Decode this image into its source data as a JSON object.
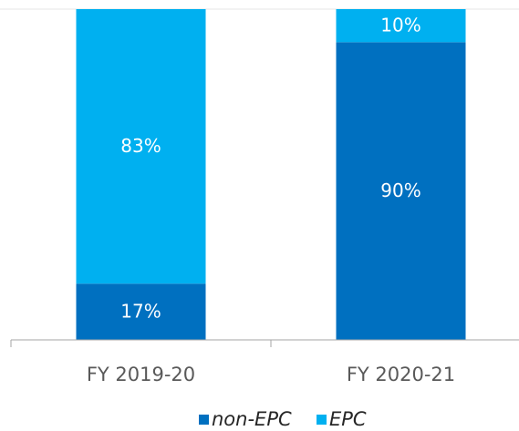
{
  "chart_data": {
    "type": "stacked_bar",
    "categories": [
      "FY 2019-20",
      "FY 2020-21"
    ],
    "series": [
      {
        "name": "non-EPC",
        "color": "#0070c0",
        "values": [
          17,
          90
        ],
        "value_labels": [
          "17%",
          "90%"
        ]
      },
      {
        "name": "EPC",
        "color": "#00b0f0",
        "values": [
          83,
          10
        ],
        "value_labels": [
          "83%",
          "10%"
        ]
      }
    ],
    "legend": "bottom"
  }
}
